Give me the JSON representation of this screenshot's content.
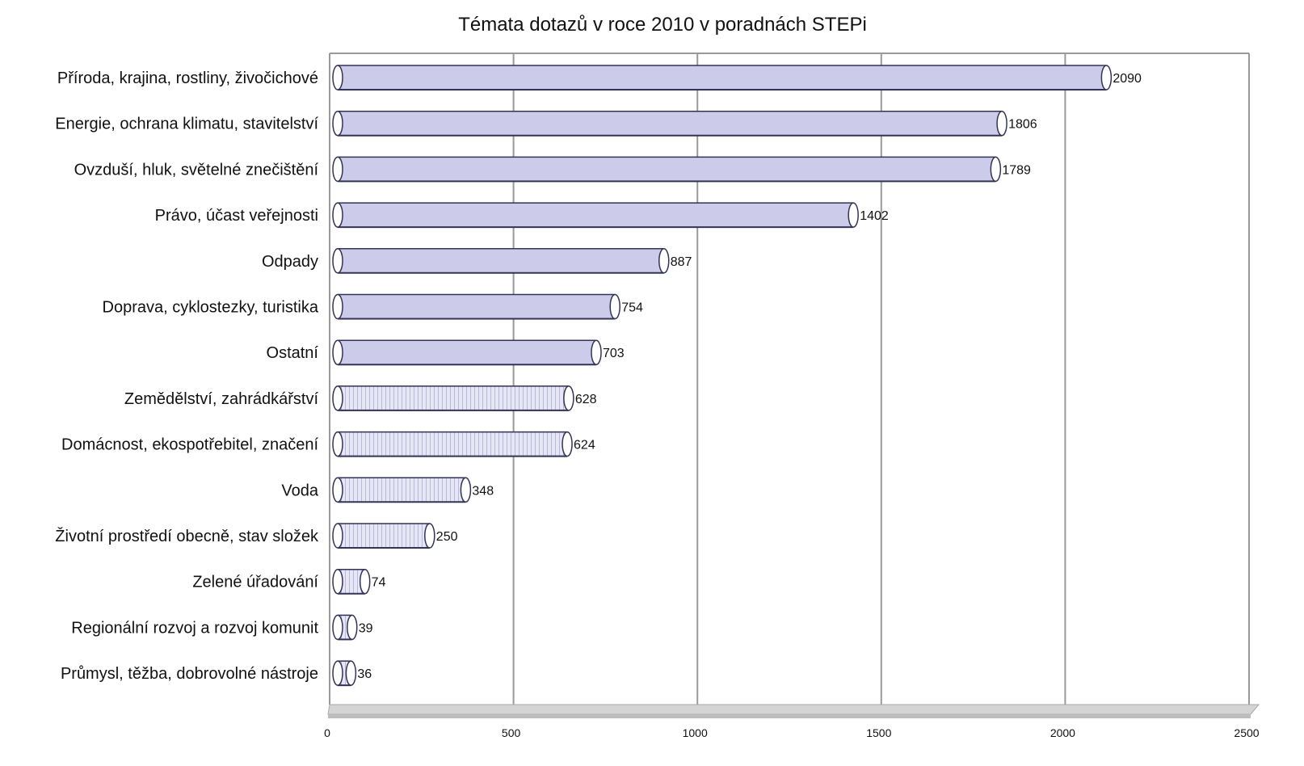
{
  "chart_data": {
    "type": "bar",
    "orientation": "horizontal",
    "style": "3d-cylinder",
    "title": "Témata dotazů v roce 2010 v poradnách STEPi",
    "xlabel": "",
    "ylabel": "",
    "categories": [
      "Příroda, krajina, rostliny, živočichové",
      "Energie, ochrana klimatu, stavitelství",
      "Ovzduší, hluk, světelné znečištění",
      "Právo, účast veřejnosti",
      "Odpady",
      "Doprava, cyklostezky, turistika",
      "Ostatní",
      "Zemědělství, zahrádkářství",
      "Domácnost, ekospotřebitel, značení",
      "Voda",
      "Životní prostředí obecně, stav složek",
      "Zelené úřadování",
      "Regionální rozvoj a rozvoj komunit",
      "Průmysl, těžba, dobrovolné nástroje"
    ],
    "values": [
      2090,
      1806,
      1789,
      1402,
      887,
      754,
      703,
      628,
      624,
      348,
      250,
      74,
      39,
      36
    ],
    "data_labels": [
      "2090",
      "1806",
      "1789",
      "1402",
      "887",
      "754",
      "703",
      "628",
      "624",
      "348",
      "250",
      "74",
      "39",
      "36"
    ],
    "xlim": [
      0,
      2500
    ],
    "x_ticks": [
      0,
      500,
      1000,
      1500,
      2000,
      2500
    ],
    "x_tick_labels": [
      "0",
      "500",
      "1000",
      "1500",
      "2000",
      "2500"
    ],
    "grid": true,
    "legend": "none",
    "colors": {
      "bar_fill": "#ccccea",
      "bar_stroke": "#333355",
      "grid": "#999999",
      "floor": "#d4d4d4"
    }
  }
}
